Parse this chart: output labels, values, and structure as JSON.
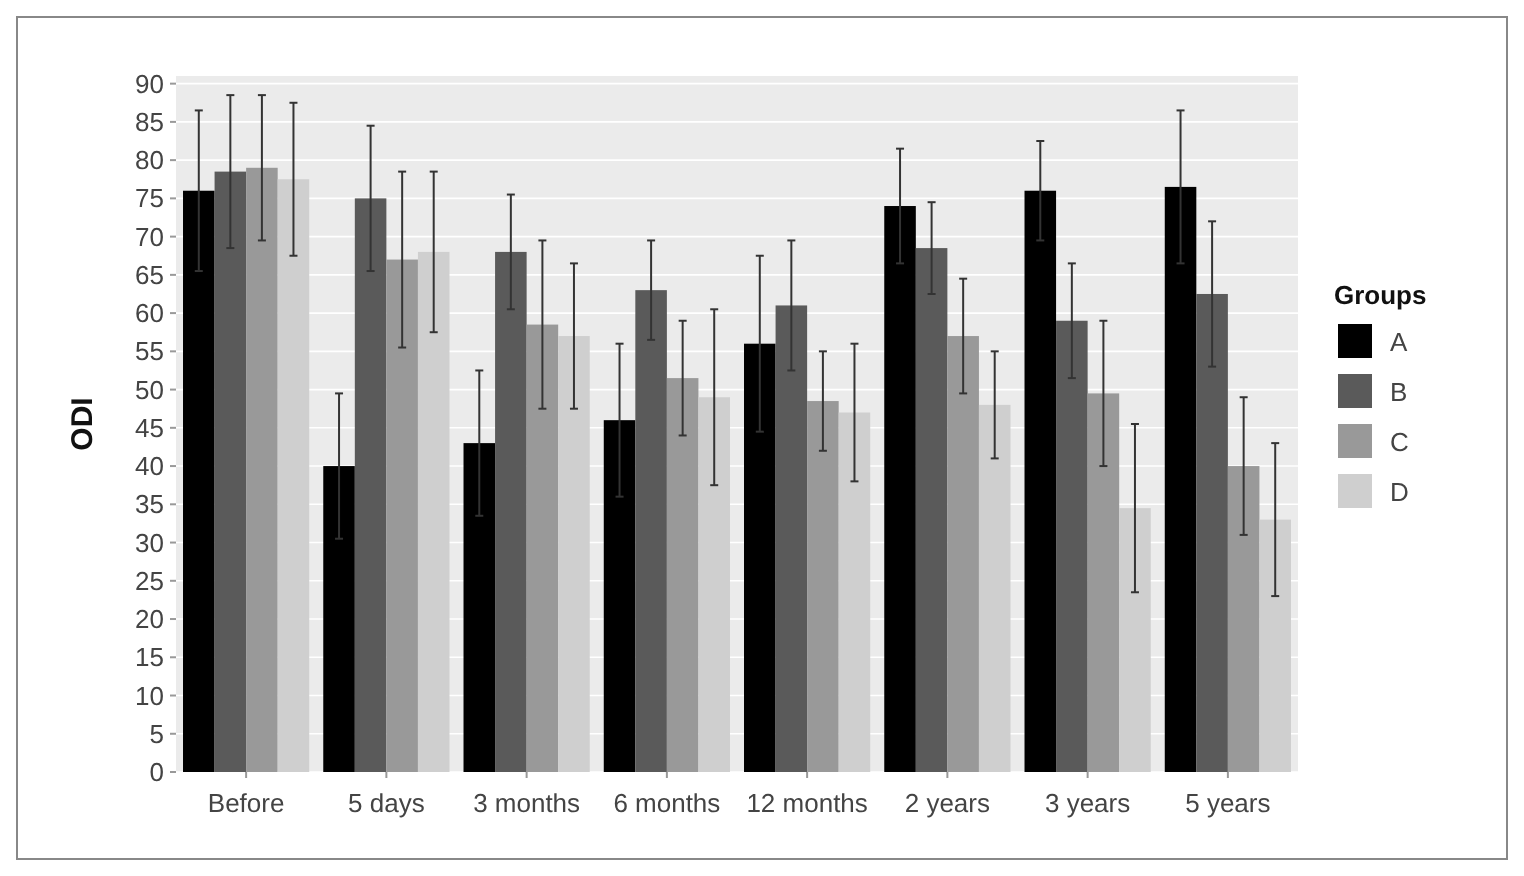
{
  "chart_data": {
    "type": "bar",
    "ylabel": "ODI",
    "legend_title": "Groups",
    "categories": [
      "Before",
      "5 days",
      "3 months",
      "6 months",
      "12 months",
      "2 years",
      "3 years",
      "5 years"
    ],
    "series": [
      {
        "name": "A",
        "color": "#000000",
        "values": [
          76,
          40,
          43,
          46,
          56,
          74,
          76,
          76.5
        ],
        "errors": [
          10.5,
          9.5,
          9.5,
          10,
          11.5,
          7.5,
          6.5,
          10
        ]
      },
      {
        "name": "B",
        "color": "#5a5a5a",
        "values": [
          78.5,
          75,
          68,
          63,
          61,
          68.5,
          59,
          62.5
        ],
        "errors": [
          10,
          9.5,
          7.5,
          6.5,
          8.5,
          6,
          7.5,
          9.5
        ]
      },
      {
        "name": "C",
        "color": "#999999",
        "values": [
          79,
          67,
          58.5,
          51.5,
          48.5,
          57,
          49.5,
          40
        ],
        "errors": [
          9.5,
          11.5,
          11,
          7.5,
          6.5,
          7.5,
          9.5,
          9
        ]
      },
      {
        "name": "D",
        "color": "#cfcfcf",
        "values": [
          77.5,
          68,
          57,
          49,
          47,
          48,
          34.5,
          33
        ],
        "errors": [
          10,
          10.5,
          9.5,
          11.5,
          9,
          7,
          11,
          10
        ]
      }
    ],
    "ylim": [
      0,
      91
    ],
    "yticks": [
      0,
      5,
      10,
      15,
      20,
      25,
      30,
      35,
      40,
      45,
      50,
      55,
      60,
      65,
      70,
      75,
      80,
      85,
      90
    ],
    "grid": "y",
    "legend": "right"
  }
}
